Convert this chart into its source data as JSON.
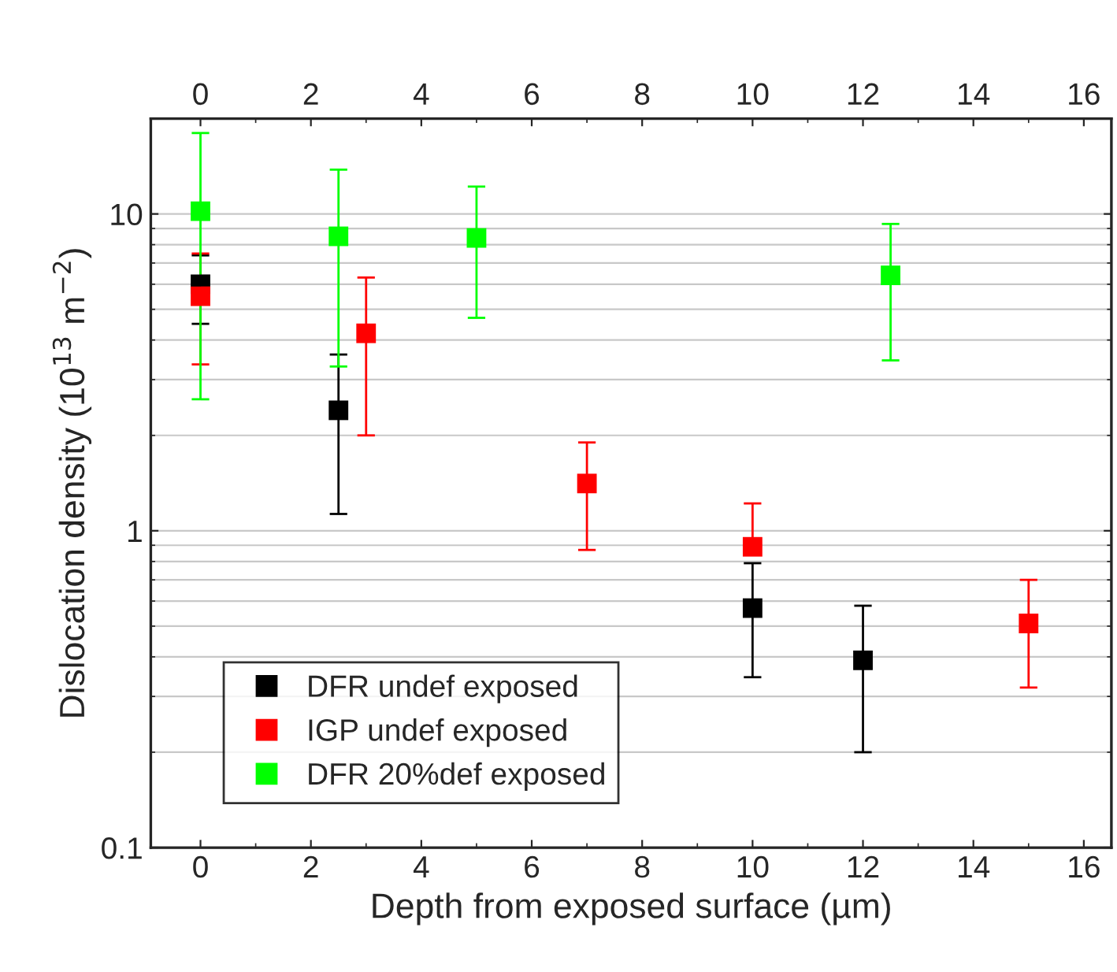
{
  "chart_data": {
    "type": "scatter",
    "xlabel": "Depth from exposed surface (µm)",
    "ylabel": "Dislocation density (10$^{13}$ m$^{−2}$)",
    "xlim": [
      -0.9,
      16.5
    ],
    "xticks": [
      0,
      2,
      4,
      6,
      8,
      10,
      12,
      14,
      16
    ],
    "x2lim": [
      -0.9,
      16.5
    ],
    "x2ticks": [
      0,
      2,
      4,
      6,
      8,
      10,
      12,
      14,
      16
    ],
    "ylim": [
      0.1,
      20
    ],
    "yticks": [
      0.1,
      1,
      10
    ],
    "log": "y",
    "grid": "y",
    "marker": "square",
    "legend": "bottom left",
    "series": [
      {
        "name": "DFR undef exposed",
        "color": "#000000",
        "x": [
          0,
          2.5,
          10,
          12
        ],
        "values": [
          6.0,
          2.4,
          0.57,
          0.39
        ],
        "errors": [
          [
            4.5,
            7.4
          ],
          [
            1.13,
            3.6
          ],
          [
            0.345,
            0.79
          ],
          [
            0.2,
            0.58
          ]
        ]
      },
      {
        "name": "IGP undef exposed",
        "color": "#ff0000",
        "x": [
          0,
          3,
          7,
          10,
          15
        ],
        "values": [
          5.5,
          4.2,
          1.41,
          0.89,
          0.51
        ],
        "errors": [
          [
            3.35,
            7.5
          ],
          [
            2.0,
            6.3
          ],
          [
            0.87,
            1.9
          ],
          [
            0.89,
            1.22
          ],
          [
            0.32,
            0.7
          ]
        ]
      },
      {
        "name": "DFR 20%def exposed",
        "color": "#00ff00",
        "x": [
          0,
          2.5,
          5,
          12.5
        ],
        "values": [
          10.2,
          8.5,
          8.4,
          6.4
        ],
        "errors": [
          [
            2.6,
            18
          ],
          [
            3.3,
            13.8
          ],
          [
            4.7,
            12.2
          ],
          [
            3.45,
            9.3
          ]
        ]
      }
    ]
  }
}
